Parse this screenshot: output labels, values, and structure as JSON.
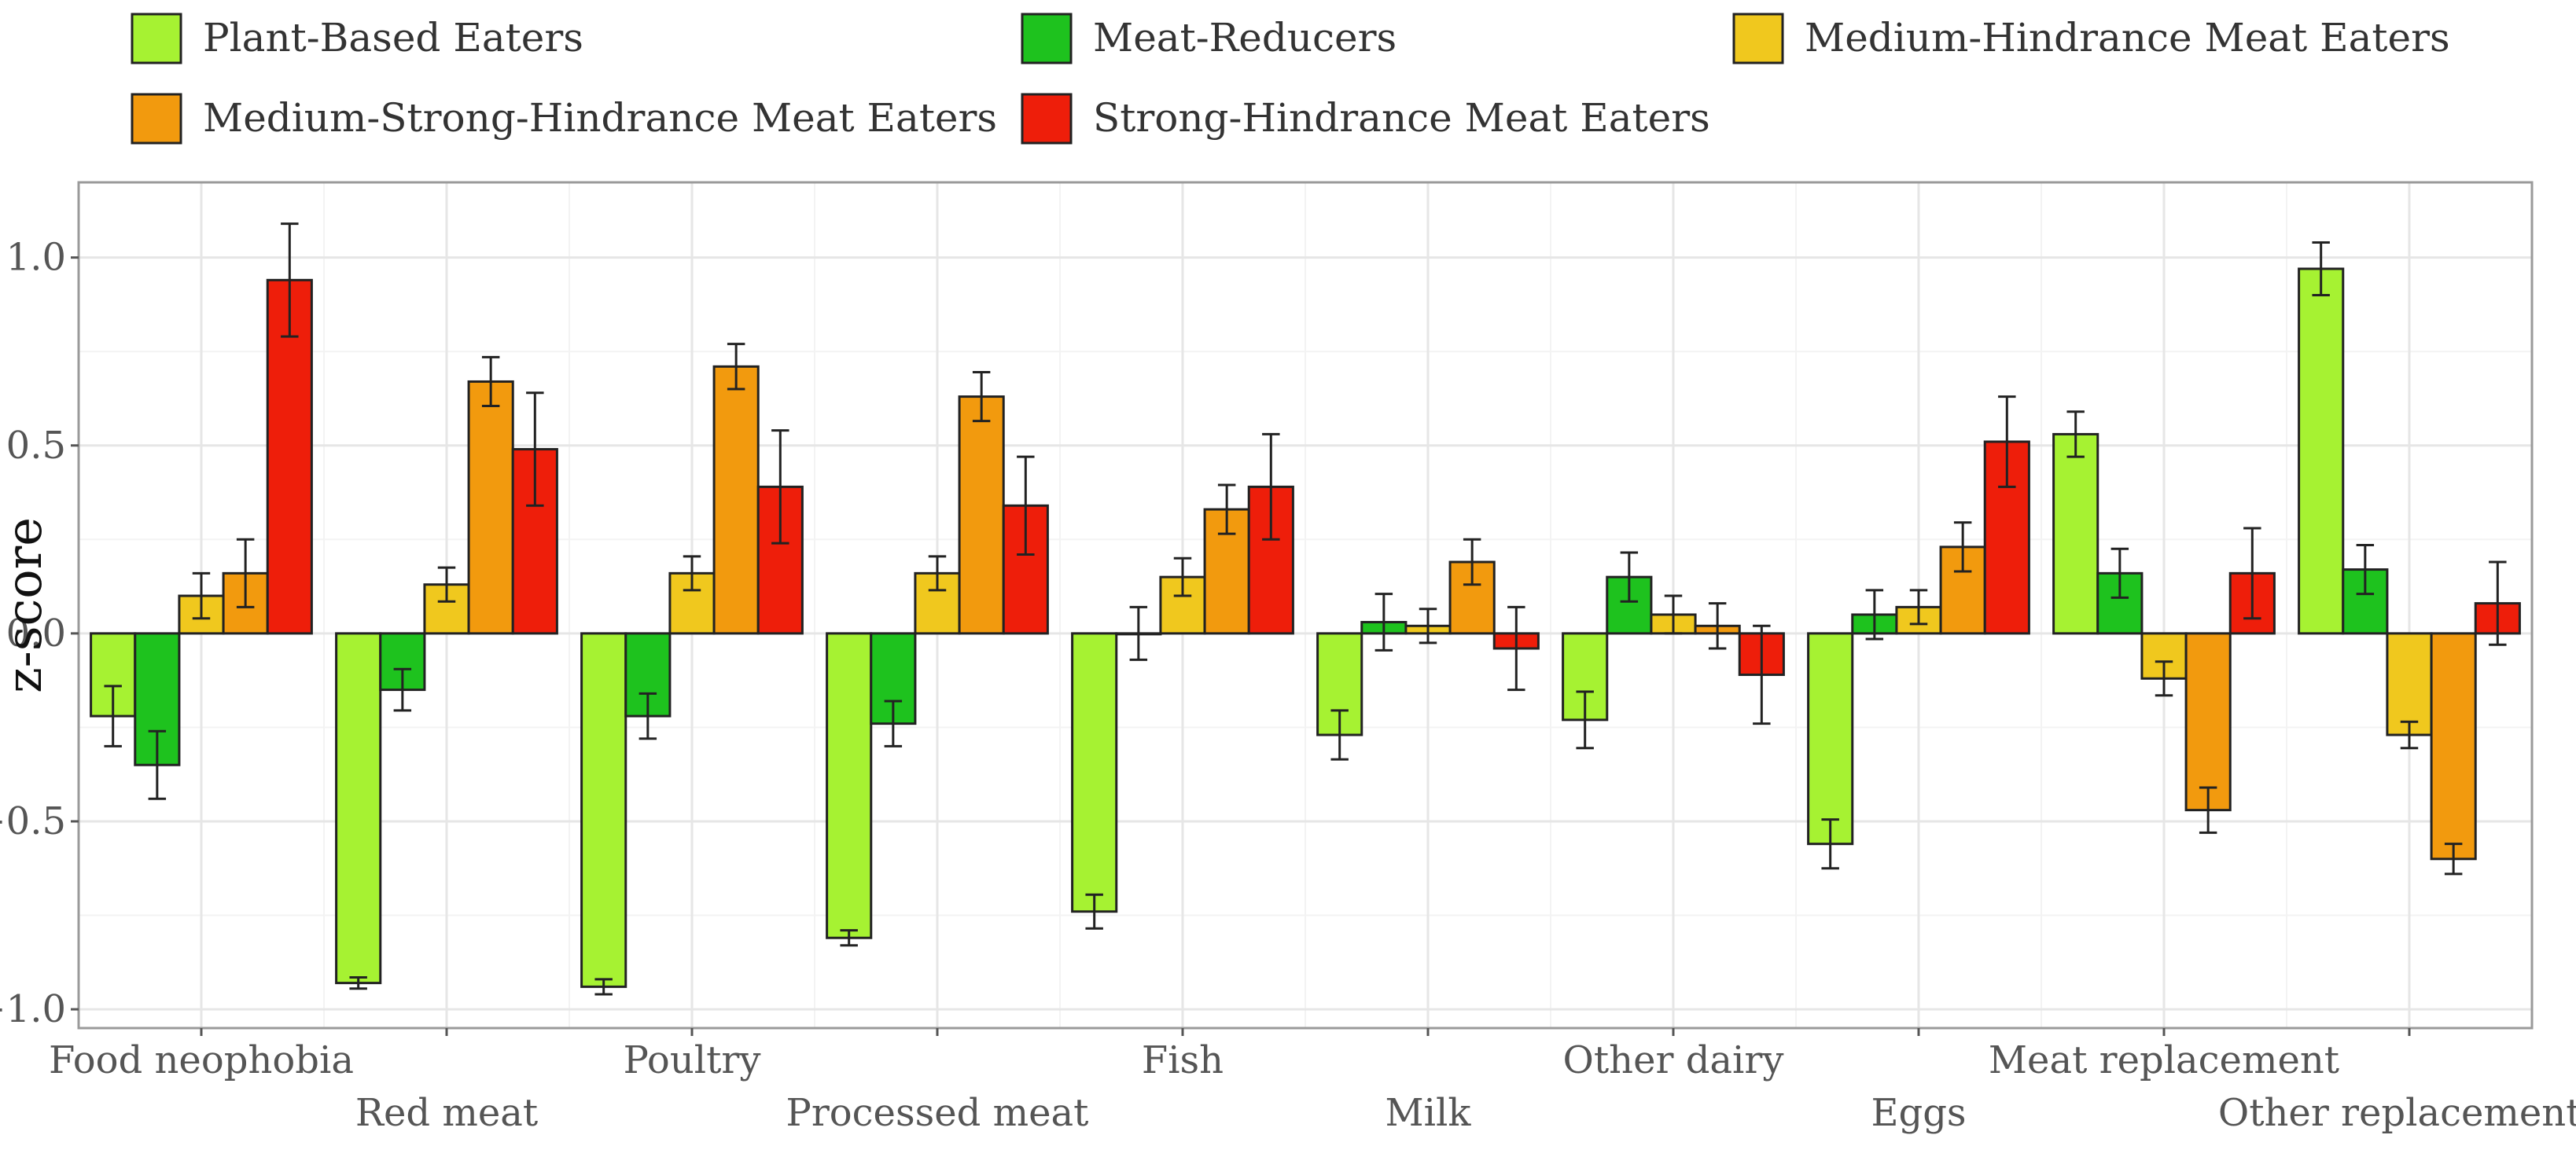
{
  "chart_data": {
    "type": "bar",
    "ylabel": "z-score",
    "xlabel": "",
    "ylim": [
      -1.05,
      1.2
    ],
    "yticks": [
      -1.0,
      -0.5,
      0.0,
      0.5,
      1.0
    ],
    "ytick_labels": [
      "−1.0",
      "−0.5",
      "0.0",
      "0.5",
      "1.0"
    ],
    "grid": true,
    "legend_position": "top",
    "categories": [
      "Food neophobia",
      "Red meat",
      "Poultry",
      "Processed meat",
      "Fish",
      "Milk",
      "Other dairy",
      "Eggs",
      "Meat replacement",
      "Other replacements"
    ],
    "series": [
      {
        "name": "Plant-Based Eaters",
        "color": "#a6f232",
        "values": [
          -0.22,
          -0.93,
          -0.94,
          -0.81,
          -0.74,
          -0.27,
          -0.23,
          -0.56,
          0.53,
          0.97
        ],
        "errors": [
          0.08,
          0.015,
          0.02,
          0.02,
          0.045,
          0.065,
          0.075,
          0.065,
          0.06,
          0.07
        ]
      },
      {
        "name": "Meat-Reducers",
        "color": "#1ec21e",
        "values": [
          -0.35,
          -0.15,
          -0.22,
          -0.24,
          0.0,
          0.03,
          0.15,
          0.05,
          0.16,
          0.17
        ],
        "errors": [
          0.09,
          0.055,
          0.06,
          0.06,
          0.07,
          0.075,
          0.065,
          0.065,
          0.065,
          0.065
        ]
      },
      {
        "name": "Medium-Hindrance Meat Eaters",
        "color": "#f0c81e",
        "values": [
          0.1,
          0.13,
          0.16,
          0.16,
          0.15,
          0.02,
          0.05,
          0.07,
          -0.12,
          -0.27
        ],
        "errors": [
          0.06,
          0.045,
          0.045,
          0.045,
          0.05,
          0.045,
          0.05,
          0.045,
          0.045,
          0.035
        ]
      },
      {
        "name": "Medium-Strong-Hindrance Meat Eaters",
        "color": "#f29a0e",
        "values": [
          0.16,
          0.67,
          0.71,
          0.63,
          0.33,
          0.19,
          0.02,
          0.23,
          -0.47,
          -0.6
        ],
        "errors": [
          0.09,
          0.065,
          0.06,
          0.065,
          0.065,
          0.06,
          0.06,
          0.065,
          0.06,
          0.04
        ]
      },
      {
        "name": "Strong-Hindrance Meat Eaters",
        "color": "#ee1e0a",
        "values": [
          0.94,
          0.49,
          0.39,
          0.34,
          0.39,
          -0.04,
          -0.11,
          0.51,
          0.16,
          0.08
        ],
        "errors": [
          0.15,
          0.15,
          0.15,
          0.13,
          0.14,
          0.11,
          0.13,
          0.12,
          0.12,
          0.11
        ]
      }
    ]
  }
}
